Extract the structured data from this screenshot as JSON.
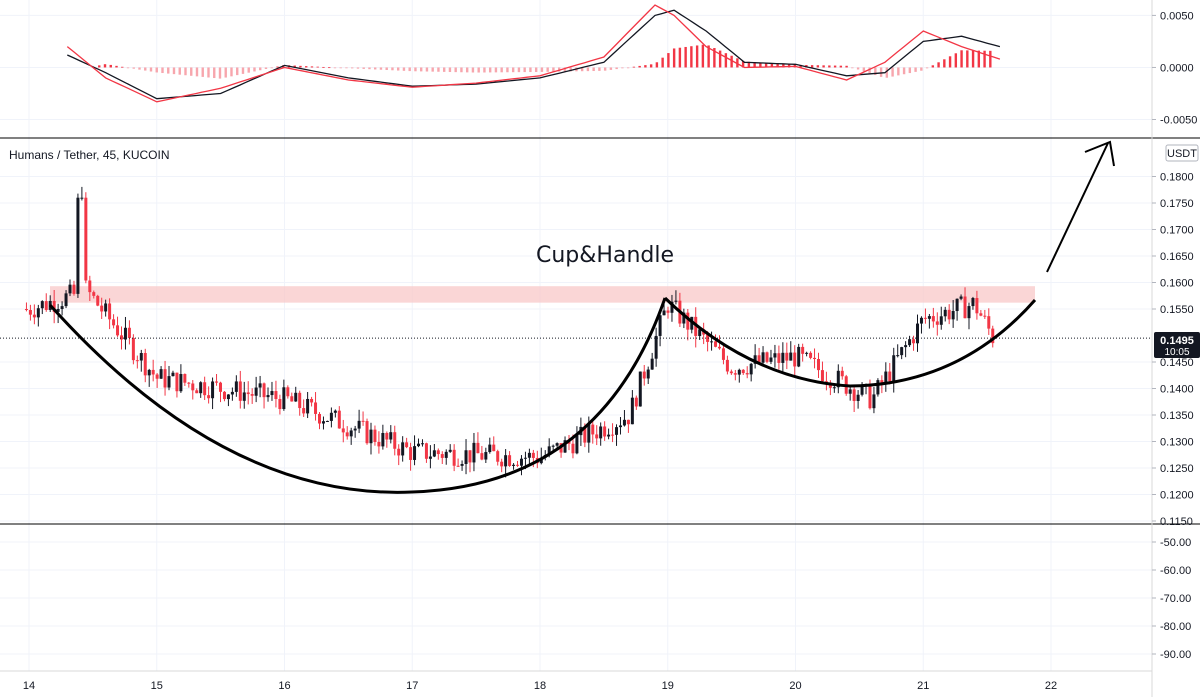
{
  "header": {
    "symbol": "Humans / Tether, 45, KUCOIN",
    "currency_badge": "USDT"
  },
  "annotation": {
    "pattern_label": "Cup&Handle"
  },
  "price_tag": {
    "price": "0.1495",
    "countdown": "10:05",
    "color": "#131722"
  },
  "colors": {
    "up": "#131722",
    "down": "#f23645",
    "resistance_zone": "#f8c8c8",
    "macd_line": "#131722",
    "signal_line": "#f23645",
    "hist_pos": "#f23645",
    "hist_neg": "#f7a6ad"
  },
  "chart_data": [
    {
      "type": "line",
      "panel": "macd",
      "y_ticks": [
        "0.0050",
        "0.0000",
        "-0.0050"
      ],
      "ylim": [
        -0.0062,
        0.006
      ],
      "x_days": [
        14.3,
        14.6,
        15.0,
        15.5,
        16.0,
        16.5,
        17.0,
        17.5,
        18.0,
        18.5,
        18.9,
        19.05,
        19.3,
        19.6,
        20.0,
        20.4,
        20.7,
        21.0,
        21.3,
        21.6
      ],
      "series": [
        {
          "values": [
            0.0012,
            -0.0005,
            -0.003,
            -0.0025,
            0.0002,
            -0.001,
            -0.0018,
            -0.0016,
            -0.001,
            0.0005,
            0.005,
            0.0055,
            0.0035,
            0.0005,
            0.0003,
            -0.0008,
            -0.0005,
            0.0025,
            0.003,
            0.002
          ]
        },
        {
          "values": [
            0.002,
            -0.001,
            -0.0033,
            -0.002,
            0.0,
            -0.0012,
            -0.0019,
            -0.0015,
            -0.0008,
            0.001,
            0.006,
            0.005,
            0.002,
            0.0,
            0.0001,
            -0.0012,
            0.0005,
            0.0035,
            0.002,
            0.0008
          ]
        }
      ]
    },
    {
      "type": "candlestick",
      "panel": "price",
      "y_ticks": [
        "0.1800",
        "0.1750",
        "0.1700",
        "0.1650",
        "0.1600",
        "0.1550",
        "0.1450",
        "0.1400",
        "0.1350",
        "0.1300",
        "0.1250",
        "0.1200",
        "0.1150"
      ],
      "ylim": [
        0.115,
        0.185
      ],
      "x_ticks": [
        "14",
        "15",
        "16",
        "17",
        "18",
        "19",
        "20",
        "21",
        "22"
      ],
      "resistance_zone": [
        0.1562,
        0.1593
      ],
      "current_price": 0.1495,
      "segments": [
        {
          "from": 14.0,
          "to": 14.4,
          "start": 0.155,
          "end": 0.158
        },
        {
          "from": 14.4,
          "to": 15.0,
          "start": 0.16,
          "end": 0.142
        },
        {
          "from": 15.0,
          "to": 16.0,
          "start": 0.142,
          "end": 0.138
        },
        {
          "from": 16.0,
          "to": 17.0,
          "start": 0.138,
          "end": 0.128
        },
        {
          "from": 17.0,
          "to": 18.0,
          "start": 0.128,
          "end": 0.127
        },
        {
          "from": 18.0,
          "to": 18.7,
          "start": 0.127,
          "end": 0.135
        },
        {
          "from": 18.7,
          "to": 19.0,
          "start": 0.135,
          "end": 0.156
        },
        {
          "from": 19.0,
          "to": 19.5,
          "start": 0.156,
          "end": 0.144
        },
        {
          "from": 19.5,
          "to": 20.0,
          "start": 0.144,
          "end": 0.146
        },
        {
          "from": 20.0,
          "to": 20.6,
          "start": 0.146,
          "end": 0.138
        },
        {
          "from": 20.6,
          "to": 21.0,
          "start": 0.138,
          "end": 0.153
        },
        {
          "from": 21.0,
          "to": 21.4,
          "start": 0.153,
          "end": 0.156
        },
        {
          "from": 21.4,
          "to": 21.55,
          "start": 0.156,
          "end": 0.1495
        }
      ]
    },
    {
      "type": "line",
      "panel": "oscillator",
      "y_ticks": [
        "-50.00",
        "-60.00",
        "-70.00",
        "-80.00",
        "-90.00"
      ],
      "ylim": [
        -95,
        -45
      ],
      "series": []
    }
  ]
}
